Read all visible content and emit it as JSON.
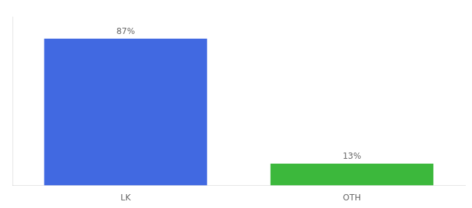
{
  "chart_data": {
    "type": "bar",
    "categories": [
      "LK",
      "OTH"
    ],
    "values": [
      87,
      13
    ],
    "value_labels": [
      "87%",
      "13%"
    ],
    "colors": [
      "#4169e1",
      "#3cb83c"
    ],
    "ylim": [
      0,
      100
    ],
    "data_labels": true,
    "tick_labels": "x",
    "grid": false
  }
}
